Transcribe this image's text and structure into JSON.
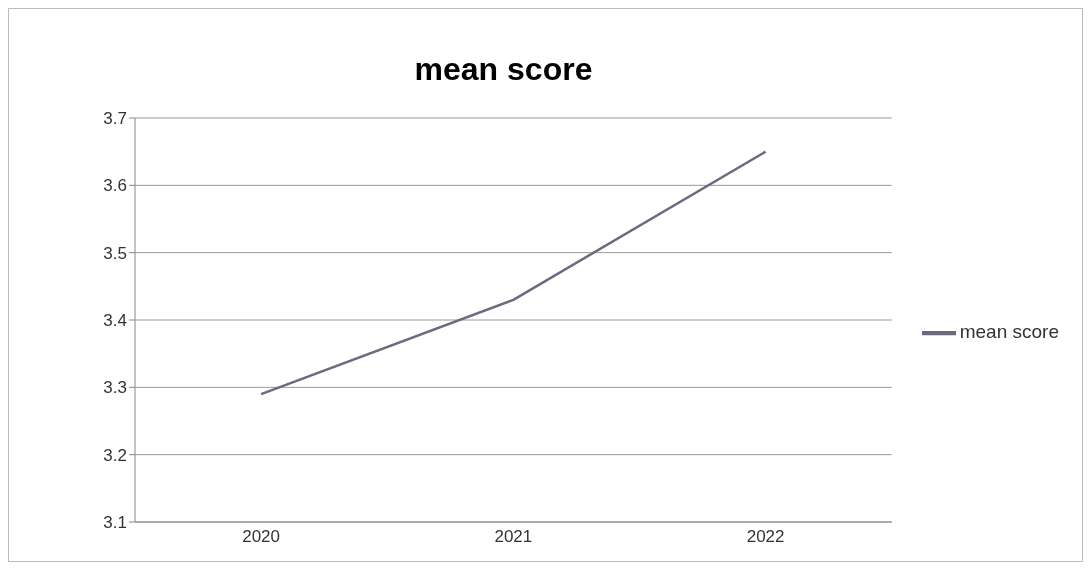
{
  "chart_data": {
    "type": "line",
    "title": "mean score",
    "categories": [
      "2020",
      "2021",
      "2022"
    ],
    "series": [
      {
        "name": "mean score",
        "color": "#6b6b80",
        "values": [
          3.29,
          3.43,
          3.65
        ]
      }
    ],
    "ylim": [
      3.1,
      3.7
    ],
    "yticks": [
      3.1,
      3.2,
      3.3,
      3.4,
      3.5,
      3.6,
      3.7
    ],
    "grid": "y",
    "legend": "right",
    "marker": "none"
  }
}
